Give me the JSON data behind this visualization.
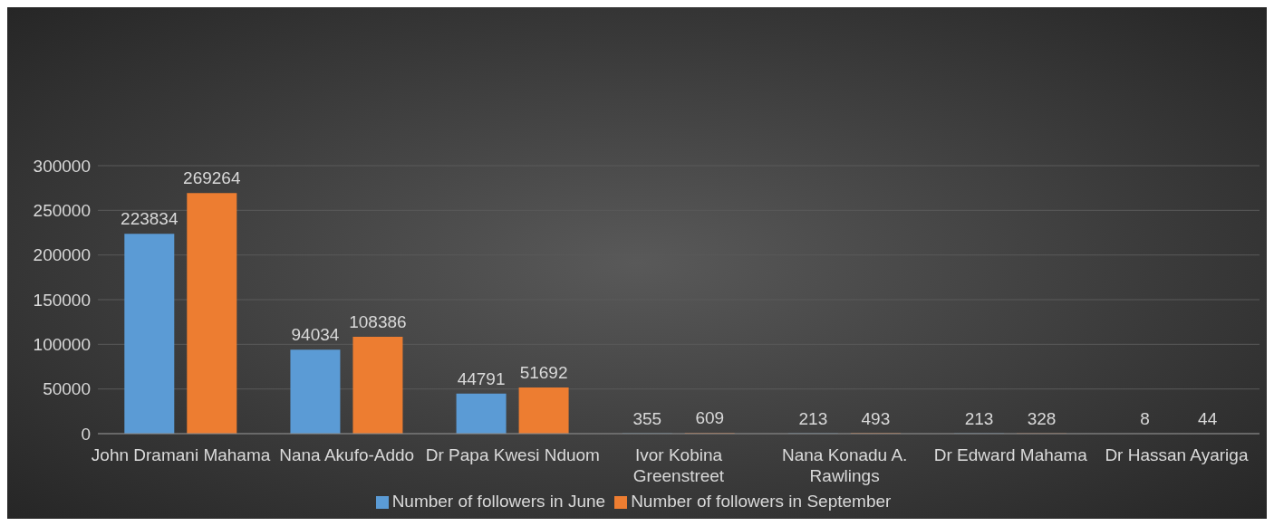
{
  "chart_data": {
    "type": "bar",
    "categories": [
      "John Dramani Mahama",
      "Nana Akufo-Addo",
      "Dr Papa Kwesi Nduom",
      "Ivor Kobina Greenstreet",
      "Nana Konadu A. Rawlings",
      "Dr Edward Mahama",
      "Dr Hassan Ayariga"
    ],
    "series": [
      {
        "name": "Number of followers in June",
        "color": "#5b9bd5",
        "values": [
          223834,
          94034,
          44791,
          355,
          213,
          213,
          8
        ]
      },
      {
        "name": "Number of followers in September",
        "color": "#ed7d31",
        "values": [
          269264,
          108386,
          51692,
          609,
          493,
          328,
          44
        ]
      }
    ],
    "ylim": [
      0,
      300000
    ],
    "yticks": [
      0,
      50000,
      100000,
      150000,
      200000,
      250000,
      300000
    ],
    "grid": "y",
    "legend": "bottom",
    "data_labels": true
  }
}
